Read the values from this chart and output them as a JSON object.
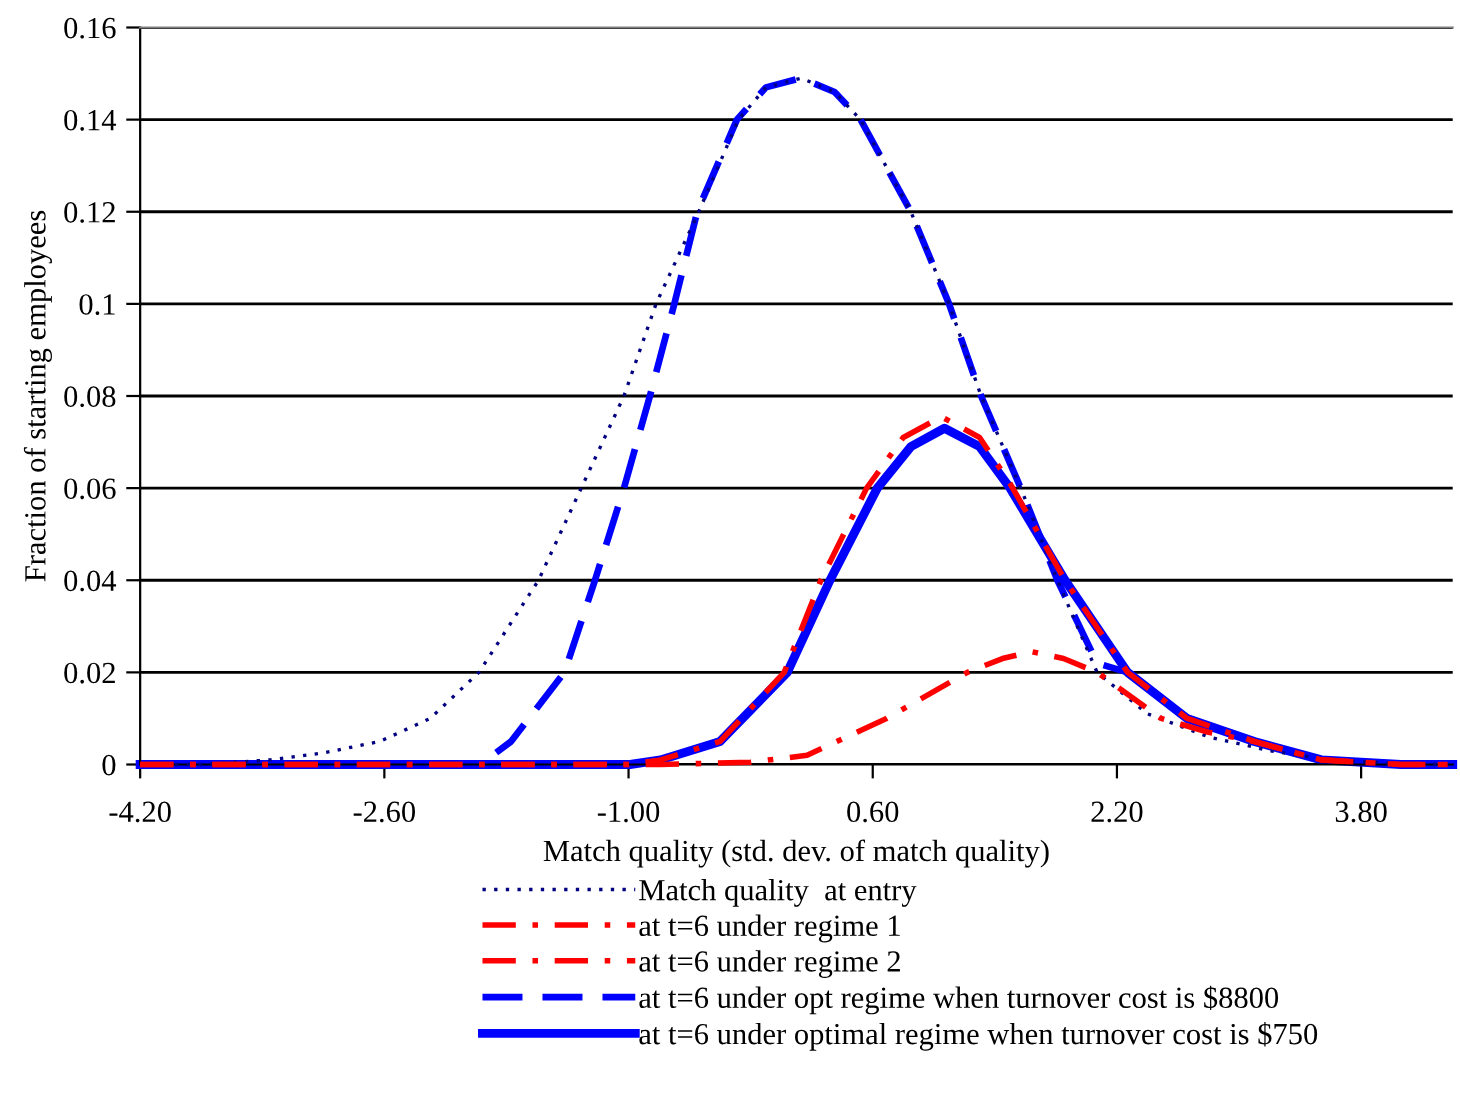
{
  "chart_data": {
    "type": "line",
    "xlabel": "Match quality (std. dev. of match quality)",
    "ylabel": "Fraction of starting employees",
    "xlim": [
      -4.2,
      4.4
    ],
    "ylim": [
      0,
      0.16
    ],
    "xticks": [
      {
        "value": -4.2,
        "label": "-4.20"
      },
      {
        "value": -2.6,
        "label": "-2.60"
      },
      {
        "value": -1.0,
        "label": "-1.00"
      },
      {
        "value": 0.6,
        "label": "0.60"
      },
      {
        "value": 2.2,
        "label": "2.20"
      },
      {
        "value": 3.8,
        "label": "3.80"
      }
    ],
    "yticks": [
      0,
      0.02,
      0.04,
      0.06,
      0.08,
      0.1,
      0.12,
      0.14,
      0.16
    ],
    "grid": "y",
    "legend": "bottom",
    "marker": "none",
    "series": [
      {
        "name": "Match quality  at entry",
        "color": "#000080",
        "line_style": "dotted",
        "x": [
          -4.2,
          -3.8,
          -3.35,
          -3.0,
          -2.63,
          -2.3,
          -1.98,
          -1.59,
          -1.31,
          -1.03,
          -0.82,
          -0.54,
          -0.28,
          -0.1,
          0.13,
          0.35,
          0.52,
          0.85,
          1.1,
          1.31,
          1.57,
          1.81,
          2.07,
          2.4,
          2.8,
          3.2,
          3.6,
          4.0,
          4.4
        ],
        "values": [
          0,
          0,
          0.001,
          0.0025,
          0.005,
          0.01,
          0.02,
          0.04,
          0.06,
          0.08,
          0.1,
          0.12,
          0.14,
          0.147,
          0.149,
          0.146,
          0.14,
          0.12,
          0.1,
          0.08,
          0.06,
          0.04,
          0.02,
          0.011,
          0.006,
          0.003,
          0.001,
          0.0003,
          0
        ]
      },
      {
        "name": "at t=6 under regime 1",
        "color": "#ff0000",
        "line_style": "dashdot",
        "x": [
          -4.2,
          -1.0,
          -0.79,
          -0.4,
          0.02,
          0.26,
          0.56,
          0.8,
          1.05,
          1.3,
          1.5,
          1.86,
          2.27,
          2.66,
          3.1,
          3.54,
          4.06,
          4.4
        ],
        "values": [
          0,
          0,
          0.001,
          0.005,
          0.02,
          0.04,
          0.06,
          0.071,
          0.0755,
          0.071,
          0.061,
          0.04,
          0.02,
          0.01,
          0.005,
          0.001,
          0,
          0
        ]
      },
      {
        "name": "at t=6 under regime 2",
        "color": "#ff0000",
        "line_style": "dashdot",
        "x": [
          -4.2,
          -0.79,
          -0.2,
          0.17,
          0.69,
          1.22,
          1.45,
          1.64,
          1.85,
          2.07,
          2.49,
          2.8,
          3.1,
          3.54,
          4.06,
          4.4
        ],
        "values": [
          0,
          0,
          0.0005,
          0.002,
          0.01,
          0.02,
          0.023,
          0.0245,
          0.023,
          0.02,
          0.01,
          0.007,
          0.005,
          0.001,
          0,
          0
        ]
      },
      {
        "name": "at t=6 under opt regime when turnover cost is $8800",
        "color": "#0000ff",
        "line_style": "dashed",
        "x": [
          -4.2,
          -1.97,
          -1.77,
          -1.42,
          -1.22,
          -1.03,
          -0.86,
          -0.7,
          -0.55,
          -0.29,
          -0.1,
          0.13,
          0.35,
          0.52,
          0.85,
          1.1,
          1.31,
          1.57,
          1.81,
          2.07,
          2.27,
          2.66,
          3.1,
          3.54,
          4.06,
          4.4
        ],
        "values": [
          0,
          0,
          0.005,
          0.02,
          0.04,
          0.06,
          0.08,
          0.1,
          0.12,
          0.14,
          0.147,
          0.149,
          0.146,
          0.14,
          0.12,
          0.1,
          0.08,
          0.06,
          0.04,
          0.022,
          0.02,
          0.01,
          0.005,
          0.001,
          0,
          0
        ]
      },
      {
        "name": "at t=6 under optimal regime when turnover cost is $750",
        "color": "#0000ff",
        "line_style": "solid",
        "x": [
          -4.2,
          -0.99,
          -0.79,
          -0.4,
          0.04,
          0.32,
          0.63,
          0.85,
          1.07,
          1.3,
          1.5,
          1.86,
          2.27,
          2.66,
          3.1,
          3.54,
          4.06,
          4.4
        ],
        "values": [
          0,
          0,
          0.001,
          0.005,
          0.02,
          0.04,
          0.06,
          0.069,
          0.073,
          0.069,
          0.06,
          0.04,
          0.02,
          0.01,
          0.005,
          0.001,
          0,
          0
        ]
      }
    ]
  }
}
